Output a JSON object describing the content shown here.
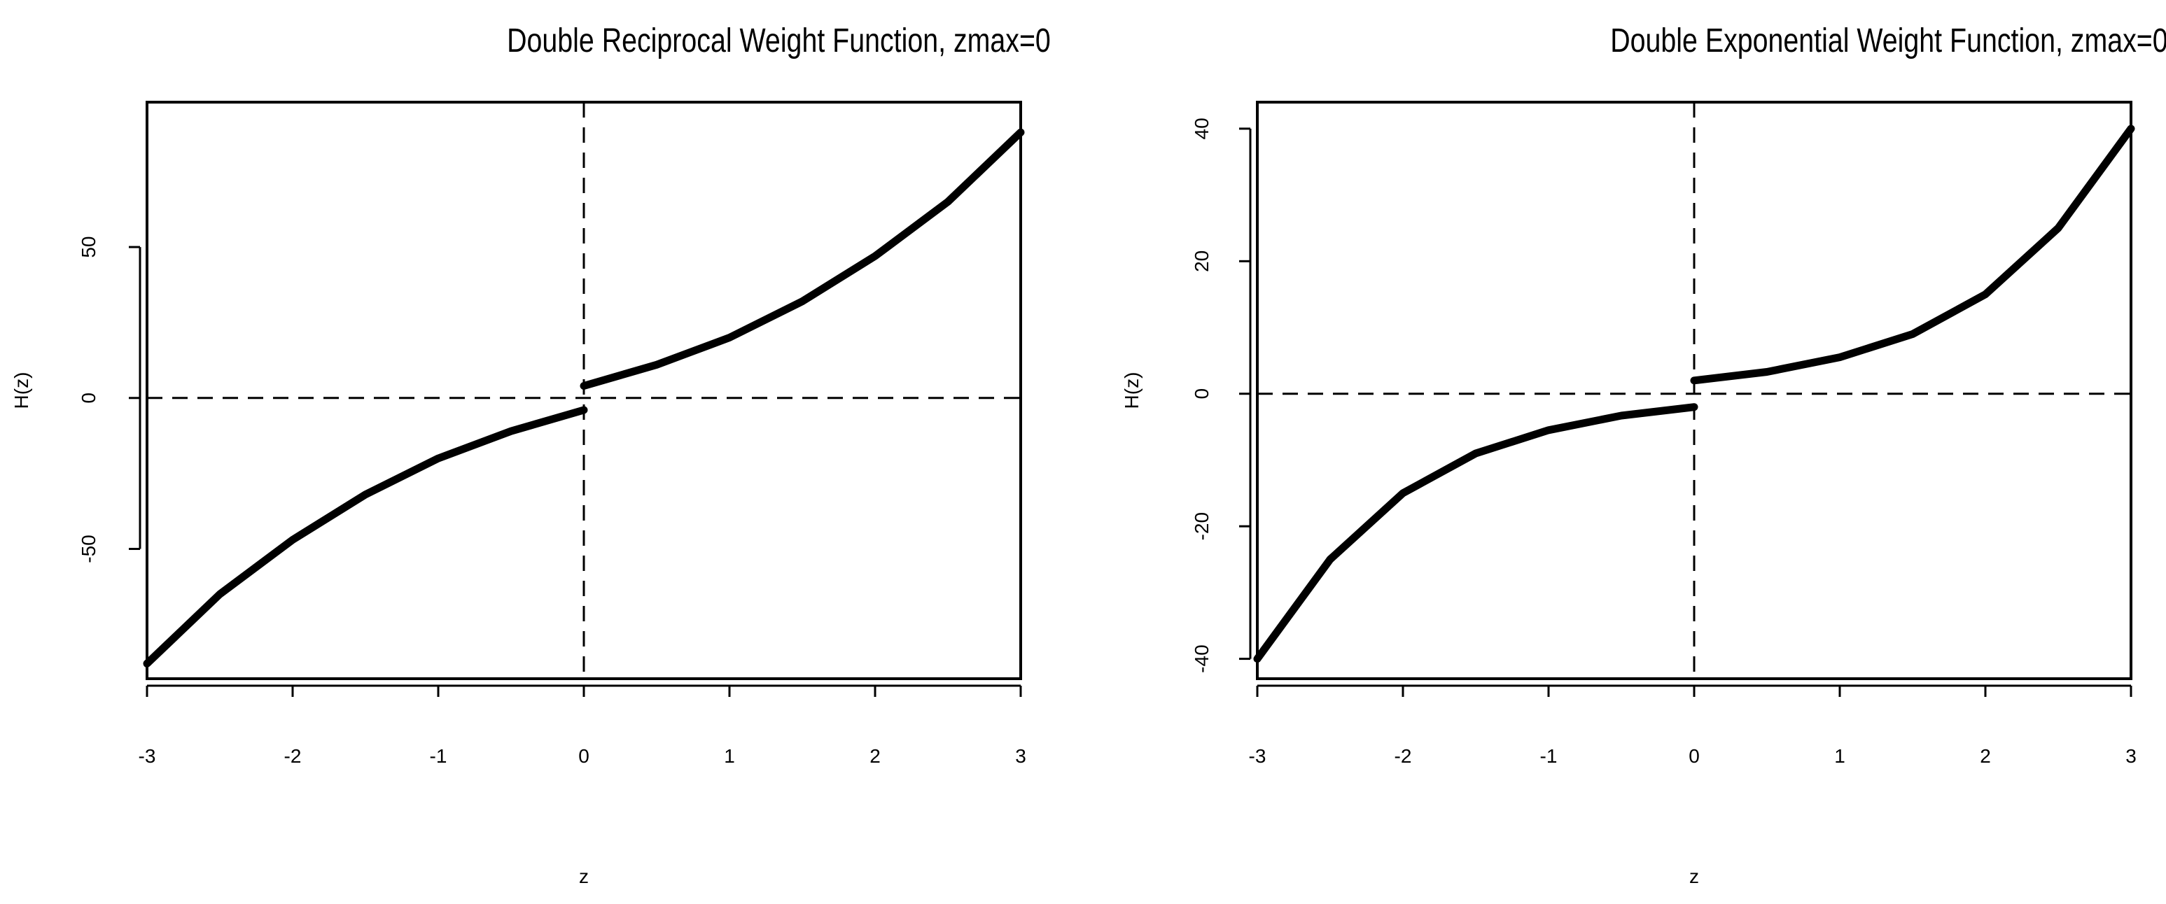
{
  "chart_data": [
    {
      "type": "line",
      "title": "Double Reciprocal Weight Function, zmax=0",
      "xlabel": "z",
      "ylabel": "H(z)",
      "xlim": [
        -3,
        3
      ],
      "ylim": [
        -93,
        98
      ],
      "xticks": [
        -3,
        -2,
        -1,
        0,
        1,
        2,
        3
      ],
      "xtick_labels": [
        "-3",
        "-2",
        "-1",
        "0",
        "1",
        "2",
        "3"
      ],
      "yticks": [
        -50,
        0,
        50
      ],
      "ytick_labels": [
        "-50",
        "0",
        "50"
      ],
      "grid": false,
      "reference_lines": {
        "x": 0,
        "y": 0,
        "style": "dashed"
      },
      "series": [
        {
          "x": [
            -3.0,
            -2.5,
            -2.0,
            -1.5,
            -1.0,
            -0.5,
            0.0
          ],
          "y": [
            -88.0,
            -65.0,
            -47.0,
            -32.0,
            -20.0,
            -11.0,
            -4.0
          ]
        },
        {
          "x": [
            0.0,
            0.5,
            1.0,
            1.5,
            2.0,
            2.5,
            3.0
          ],
          "y": [
            4.0,
            11.0,
            20.0,
            32.0,
            47.0,
            65.0,
            88.0
          ]
        }
      ]
    },
    {
      "type": "line",
      "title": "Double Exponential Weight Function, zmax=0",
      "xlabel": "z",
      "ylabel": "H(z)",
      "xlim": [
        -3,
        3
      ],
      "ylim": [
        -43,
        44
      ],
      "xticks": [
        -3,
        -2,
        -1,
        0,
        1,
        2,
        3
      ],
      "xtick_labels": [
        "-3",
        "-2",
        "-1",
        "0",
        "1",
        "2",
        "3"
      ],
      "yticks": [
        -40,
        -20,
        0,
        20,
        40
      ],
      "ytick_labels": [
        "-40",
        "-20",
        "0",
        "20",
        "40"
      ],
      "grid": false,
      "reference_lines": {
        "x": 0,
        "y": 0,
        "style": "dashed"
      },
      "series": [
        {
          "x": [
            -3.0,
            -2.5,
            -2.0,
            -1.5,
            -1.0,
            -0.5,
            0.0
          ],
          "y": [
            -40.0,
            -25.0,
            -15.0,
            -9.0,
            -5.5,
            -3.3,
            -2.0
          ]
        },
        {
          "x": [
            0.0,
            0.5,
            1.0,
            1.5,
            2.0,
            2.5,
            3.0
          ],
          "y": [
            2.0,
            3.3,
            5.5,
            9.0,
            15.0,
            25.0,
            40.0
          ]
        }
      ]
    }
  ]
}
